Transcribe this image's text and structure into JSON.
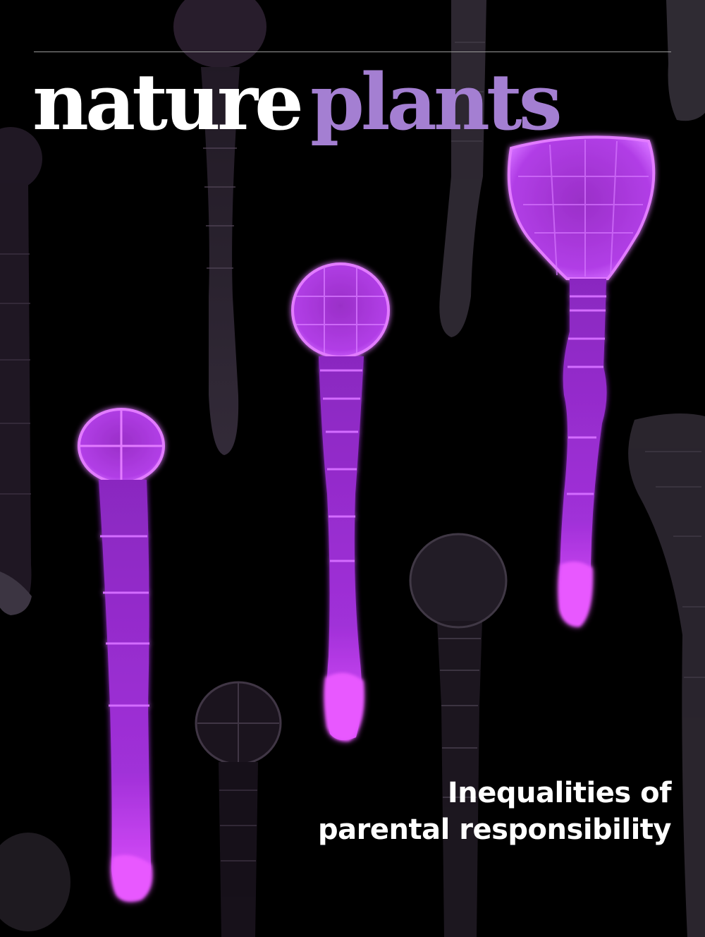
{
  "cover": {
    "journal_word_1": "nature",
    "journal_word_2": "plants",
    "headline_line_1": "Inequalities of",
    "headline_line_2": "parental responsibility"
  },
  "colors": {
    "background": "#000000",
    "masthead_primary": "#ffffff",
    "masthead_accent": "#a47fd2",
    "embryo_bright": "#c040f0",
    "embryo_faint": "#6a5a74"
  }
}
